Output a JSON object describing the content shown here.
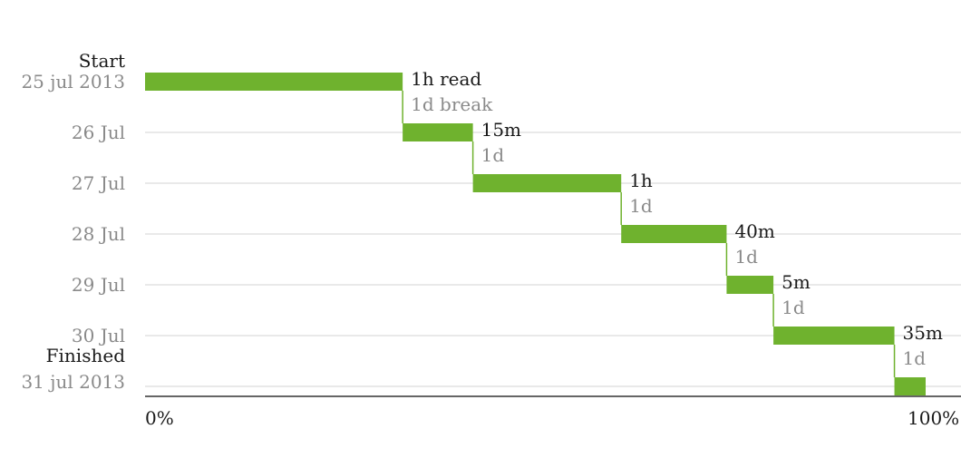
{
  "chart_data": {
    "type": "step-bar",
    "title": "",
    "xlabel": "",
    "ylabel": "",
    "xlim": [
      0,
      100
    ],
    "x_unit": "%",
    "x_tick_labels": [
      "0%",
      "100%"
    ],
    "y_axis": {
      "start_label": "Start",
      "start_date": "25 jul 2013",
      "end_label": "Finished",
      "end_date": "31 jul 2013",
      "day_labels": [
        "26 Jul",
        "27 Jul",
        "28 Jul",
        "29 Jul",
        "30 Jul"
      ]
    },
    "grid": true,
    "bar_color": "#6fb22e",
    "segments": [
      {
        "day": "25 jul 2013",
        "start_pct": 0.0,
        "end_pct": 33.0,
        "duration_label": "1h read",
        "gap_label": "1d break"
      },
      {
        "day": "26 Jul",
        "start_pct": 33.0,
        "end_pct": 42.0,
        "duration_label": "15m",
        "gap_label": "1d"
      },
      {
        "day": "27 Jul",
        "start_pct": 42.0,
        "end_pct": 61.0,
        "duration_label": "1h",
        "gap_label": "1d"
      },
      {
        "day": "28 Jul",
        "start_pct": 61.0,
        "end_pct": 74.5,
        "duration_label": "40m",
        "gap_label": "1d"
      },
      {
        "day": "29 Jul",
        "start_pct": 74.5,
        "end_pct": 80.5,
        "duration_label": "5m",
        "gap_label": "1d"
      },
      {
        "day": "30 Jul",
        "start_pct": 80.5,
        "end_pct": 96.0,
        "duration_label": "35m",
        "gap_label": "1d"
      },
      {
        "day": "31 jul 2013",
        "start_pct": 96.0,
        "end_pct": 100.0,
        "duration_label": "",
        "gap_label": ""
      }
    ]
  }
}
